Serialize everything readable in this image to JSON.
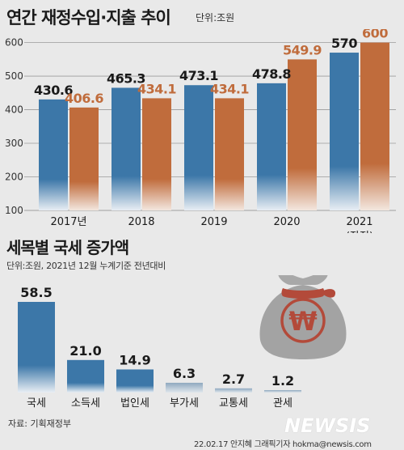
{
  "title": "연간 재정수입·지출 추이",
  "unit": "단위:조원",
  "colors": {
    "revenue": "#3c77a8",
    "expenditure": "#c06c3c",
    "tax": "#3c77a8",
    "tax_light": "#9db3c6",
    "bag": "#a3a3a3",
    "bag_ribbon": "#b34a3a"
  },
  "chart_data": [
    {
      "type": "bar",
      "categories": [
        "2017년",
        "2018",
        "2019",
        "2020",
        "2021"
      ],
      "category_sublabel": [
        "",
        "",
        "",
        "",
        "(잠정)"
      ],
      "series": [
        {
          "values": [
            430.6,
            465.3,
            473.1,
            478.8,
            570
          ]
        },
        {
          "values": [
            406.6,
            434.1,
            434.1,
            549.9,
            600
          ]
        }
      ],
      "value_labels": [
        [
          "430.6",
          "465.3",
          "473.1",
          "478.8",
          "570"
        ],
        [
          "406.6",
          "434.1",
          "434.1",
          "549.9",
          "600"
        ]
      ],
      "yticks": [
        100,
        200,
        300,
        400,
        500,
        600
      ],
      "ylim": [
        100,
        640
      ],
      "grid": true
    },
    {
      "type": "bar",
      "title": "세목별 국세 증가액",
      "note": "단위:조원, 2021년 12월 누계기준 전년대비",
      "categories": [
        "국세",
        "소득세",
        "법인세",
        "부가세",
        "교통세",
        "관세"
      ],
      "values": [
        58.5,
        21.0,
        14.9,
        6.3,
        2.7,
        1.2
      ],
      "value_labels": [
        "58.5",
        "21.0",
        "14.9",
        "6.3",
        "2.7",
        "1.2"
      ]
    }
  ],
  "icon": {
    "name": "money-bag-icon",
    "symbol": "₩"
  },
  "source": "자료: 기획재정부",
  "watermark": "NEWSIS",
  "credit": "22.02.17 안지혜 그래픽기자 hokma@newsis.com"
}
